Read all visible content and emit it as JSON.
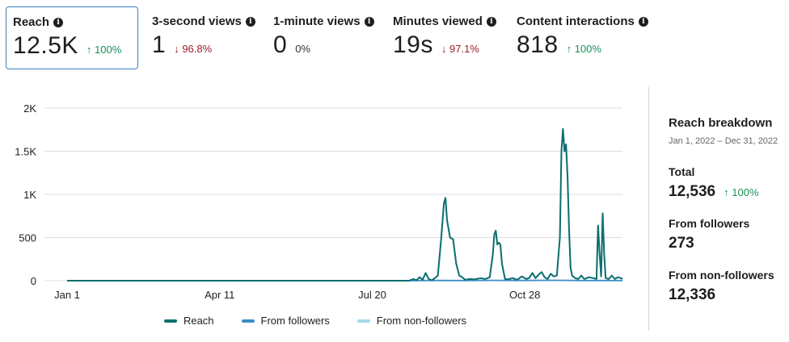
{
  "metrics": [
    {
      "title": "Reach",
      "value": "12.5K",
      "arrow": "↑",
      "delta": "100%",
      "direction": "up"
    },
    {
      "title": "3-second views",
      "value": "1",
      "arrow": "↓",
      "delta": "96.8%",
      "direction": "down"
    },
    {
      "title": "1-minute views",
      "value": "0",
      "arrow": "",
      "delta": "0%",
      "direction": "flat"
    },
    {
      "title": "Minutes viewed",
      "value": "19s",
      "arrow": "↓",
      "delta": "97.1%",
      "direction": "down"
    },
    {
      "title": "Content interactions",
      "value": "818",
      "arrow": "↑",
      "delta": "100%",
      "direction": "up"
    }
  ],
  "info_icon": "info-icon",
  "chart_data": {
    "type": "line",
    "title": "",
    "xlabel": "",
    "ylabel": "",
    "ylim": [
      0,
      2000
    ],
    "yticks": [
      0,
      500,
      1000,
      1500,
      2000
    ],
    "ytick_labels": [
      "0",
      "500",
      "1K",
      "1.5K",
      "2K"
    ],
    "xlim": [
      1,
      365
    ],
    "xticks": [
      1,
      101,
      201,
      301
    ],
    "xtick_labels": [
      "Jan 1",
      "Apr 11",
      "Jul 20",
      "Oct 28"
    ],
    "grid": true,
    "legend_position": "bottom-center",
    "series": [
      {
        "name": "Reach",
        "color": "#0d6e6e",
        "points": [
          [
            1,
            0
          ],
          [
            225,
            0
          ],
          [
            228,
            20
          ],
          [
            230,
            5
          ],
          [
            232,
            40
          ],
          [
            234,
            10
          ],
          [
            236,
            90
          ],
          [
            238,
            20
          ],
          [
            240,
            5
          ],
          [
            242,
            30
          ],
          [
            244,
            60
          ],
          [
            246,
            450
          ],
          [
            248,
            900
          ],
          [
            249,
            960
          ],
          [
            250,
            700
          ],
          [
            252,
            500
          ],
          [
            254,
            480
          ],
          [
            256,
            200
          ],
          [
            258,
            60
          ],
          [
            260,
            40
          ],
          [
            262,
            10
          ],
          [
            265,
            20
          ],
          [
            268,
            15
          ],
          [
            272,
            30
          ],
          [
            275,
            20
          ],
          [
            278,
            40
          ],
          [
            280,
            300
          ],
          [
            281,
            540
          ],
          [
            282,
            580
          ],
          [
            283,
            420
          ],
          [
            284,
            440
          ],
          [
            285,
            420
          ],
          [
            286,
            200
          ],
          [
            288,
            20
          ],
          [
            290,
            15
          ],
          [
            293,
            30
          ],
          [
            296,
            10
          ],
          [
            299,
            50
          ],
          [
            302,
            20
          ],
          [
            304,
            35
          ],
          [
            306,
            90
          ],
          [
            308,
            30
          ],
          [
            310,
            70
          ],
          [
            312,
            100
          ],
          [
            314,
            40
          ],
          [
            316,
            20
          ],
          [
            318,
            80
          ],
          [
            320,
            50
          ],
          [
            322,
            60
          ],
          [
            324,
            500
          ],
          [
            325,
            1500
          ],
          [
            326,
            1760
          ],
          [
            327,
            1500
          ],
          [
            328,
            1580
          ],
          [
            329,
            1200
          ],
          [
            330,
            600
          ],
          [
            331,
            150
          ],
          [
            332,
            60
          ],
          [
            334,
            30
          ],
          [
            336,
            20
          ],
          [
            338,
            60
          ],
          [
            340,
            20
          ],
          [
            343,
            40
          ],
          [
            346,
            30
          ],
          [
            348,
            20
          ],
          [
            349,
            640
          ],
          [
            350,
            320
          ],
          [
            351,
            50
          ],
          [
            352,
            780
          ],
          [
            353,
            300
          ],
          [
            354,
            30
          ],
          [
            356,
            20
          ],
          [
            358,
            60
          ],
          [
            360,
            20
          ],
          [
            362,
            40
          ],
          [
            364,
            30
          ],
          [
            365,
            20
          ]
        ]
      },
      {
        "name": "From followers",
        "color": "#3b8ec8",
        "points": [
          [
            1,
            0
          ],
          [
            225,
            0
          ],
          [
            240,
            3
          ],
          [
            260,
            2
          ],
          [
            280,
            4
          ],
          [
            300,
            3
          ],
          [
            320,
            5
          ],
          [
            340,
            2
          ],
          [
            365,
            2
          ]
        ]
      },
      {
        "name": "From non-followers",
        "color": "#a8d8ea",
        "points": [
          [
            1,
            0
          ],
          [
            225,
            0
          ],
          [
            228,
            18
          ],
          [
            230,
            4
          ],
          [
            232,
            38
          ],
          [
            234,
            9
          ],
          [
            236,
            88
          ],
          [
            238,
            19
          ],
          [
            240,
            4
          ],
          [
            242,
            29
          ],
          [
            244,
            58
          ],
          [
            246,
            445
          ],
          [
            248,
            895
          ],
          [
            249,
            955
          ],
          [
            250,
            695
          ],
          [
            252,
            495
          ],
          [
            254,
            476
          ],
          [
            256,
            197
          ],
          [
            258,
            58
          ],
          [
            260,
            38
          ],
          [
            262,
            9
          ],
          [
            265,
            18
          ],
          [
            268,
            14
          ],
          [
            272,
            28
          ],
          [
            275,
            18
          ],
          [
            278,
            38
          ],
          [
            280,
            296
          ],
          [
            281,
            536
          ],
          [
            282,
            576
          ],
          [
            283,
            416
          ],
          [
            284,
            436
          ],
          [
            285,
            416
          ],
          [
            286,
            197
          ],
          [
            288,
            18
          ],
          [
            290,
            13
          ],
          [
            293,
            28
          ],
          [
            296,
            9
          ],
          [
            299,
            48
          ],
          [
            302,
            18
          ],
          [
            304,
            33
          ],
          [
            306,
            88
          ],
          [
            308,
            28
          ],
          [
            310,
            68
          ],
          [
            312,
            97
          ],
          [
            314,
            38
          ],
          [
            316,
            18
          ],
          [
            318,
            78
          ],
          [
            320,
            48
          ],
          [
            322,
            58
          ],
          [
            324,
            495
          ],
          [
            325,
            1495
          ],
          [
            326,
            1755
          ],
          [
            327,
            1495
          ],
          [
            328,
            1575
          ],
          [
            329,
            1195
          ],
          [
            330,
            596
          ],
          [
            331,
            147
          ],
          [
            332,
            58
          ],
          [
            334,
            28
          ],
          [
            336,
            18
          ],
          [
            338,
            58
          ],
          [
            340,
            18
          ],
          [
            343,
            38
          ],
          [
            346,
            28
          ],
          [
            348,
            18
          ],
          [
            349,
            636
          ],
          [
            350,
            316
          ],
          [
            351,
            48
          ],
          [
            352,
            776
          ],
          [
            353,
            296
          ],
          [
            354,
            28
          ],
          [
            356,
            18
          ],
          [
            358,
            58
          ],
          [
            360,
            18
          ],
          [
            362,
            38
          ],
          [
            364,
            28
          ],
          [
            365,
            18
          ]
        ]
      }
    ]
  },
  "legend": [
    {
      "label": "Reach",
      "color": "#0d6e6e"
    },
    {
      "label": "From followers",
      "color": "#3b8ec8"
    },
    {
      "label": "From non-followers",
      "color": "#a8d8ea"
    }
  ],
  "breakdown": {
    "title": "Reach breakdown",
    "range": "Jan 1, 2022 – Dec 31, 2022",
    "total_label": "Total",
    "total_value": "12,536",
    "total_arrow": "↑",
    "total_delta": "100%",
    "followers_label": "From followers",
    "followers_value": "273",
    "nonfollowers_label": "From non-followers",
    "nonfollowers_value": "12,336"
  }
}
